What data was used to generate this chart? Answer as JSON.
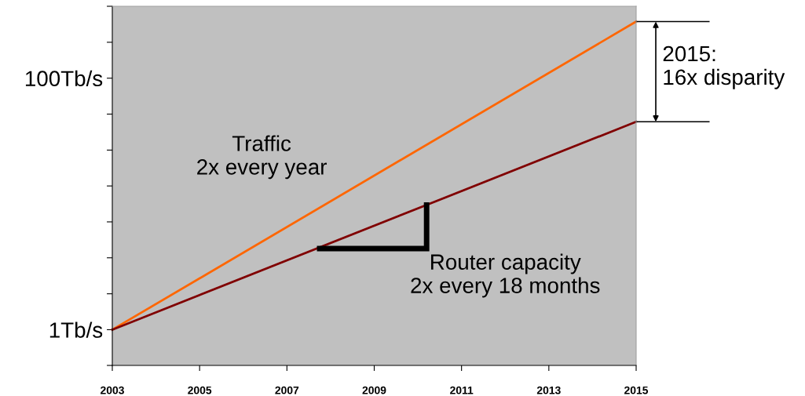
{
  "chart_data": {
    "type": "line",
    "log": "y",
    "x": [
      2003,
      2015
    ],
    "series": [
      {
        "color": "#ff6600",
        "values": [
          1,
          282
        ]
      },
      {
        "color": "#800000",
        "values": [
          1,
          45
        ]
      }
    ],
    "xlim": [
      2003,
      2015
    ],
    "xticks": [
      2003,
      2005,
      2007,
      2009,
      2011,
      2013,
      2015
    ],
    "ylim": [
      0.52,
      373
    ],
    "yticks": [
      {
        "value": 0.52,
        "label": null
      },
      {
        "value": 1,
        "label": "1Tb/s"
      },
      {
        "value": 1.93,
        "label": null
      },
      {
        "value": 3.73,
        "label": null
      },
      {
        "value": 7.2,
        "label": null
      },
      {
        "value": 13.9,
        "label": null
      },
      {
        "value": 26.8,
        "label": null
      },
      {
        "value": 51.8,
        "label": null
      },
      {
        "value": 100,
        "label": "100Tb/s"
      },
      {
        "value": 193,
        "label": null
      },
      {
        "value": 373,
        "label": null
      }
    ],
    "marker": "none",
    "line_style": "solid",
    "annotations": [
      "Traffic\n2x every year",
      "Router capacity\n2x every 18 months",
      "2015:\n16x disparity"
    ]
  }
}
